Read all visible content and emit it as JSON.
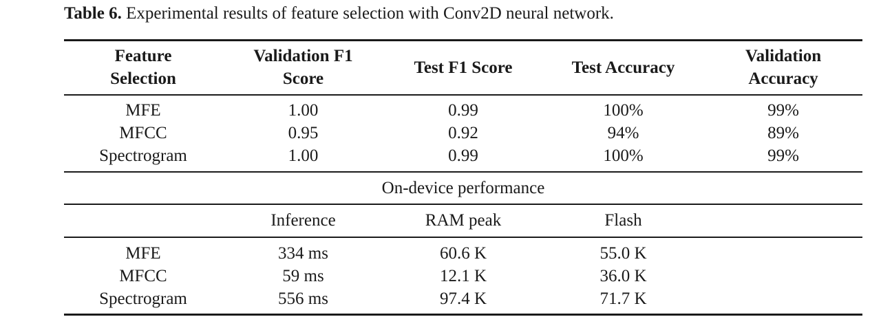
{
  "caption": {
    "label": "Table 6.",
    "text": " Experimental results of feature selection with Conv2D neural network."
  },
  "header": {
    "col0_line1": "Feature",
    "col0_line2": "Selection",
    "col1_line1": "Validation F1",
    "col1_line2": "Score",
    "col2": "Test F1 Score",
    "col3": "Test Accuracy",
    "col4_line1": "Validation",
    "col4_line2": "Accuracy"
  },
  "results": [
    {
      "feature": "MFE",
      "val_f1": "1.00",
      "test_f1": "0.99",
      "test_acc": "100%",
      "val_acc": "99%"
    },
    {
      "feature": "MFCC",
      "val_f1": "0.95",
      "test_f1": "0.92",
      "test_acc": "94%",
      "val_acc": "89%"
    },
    {
      "feature": "Spectrogram",
      "val_f1": "1.00",
      "test_f1": "0.99",
      "test_acc": "100%",
      "val_acc": "99%"
    }
  ],
  "section_title": "On-device performance",
  "perf_header": {
    "col1": "Inference",
    "col2": "RAM peak",
    "col3": "Flash"
  },
  "perf": [
    {
      "feature": "MFE",
      "inference": "334 ms",
      "ram": "60.6 K",
      "flash": "55.0 K"
    },
    {
      "feature": "MFCC",
      "inference": "59 ms",
      "ram": "12.1 K",
      "flash": "36.0 K"
    },
    {
      "feature": "Spectrogram",
      "inference": "556 ms",
      "ram": "97.4 K",
      "flash": "71.7 K"
    }
  ]
}
